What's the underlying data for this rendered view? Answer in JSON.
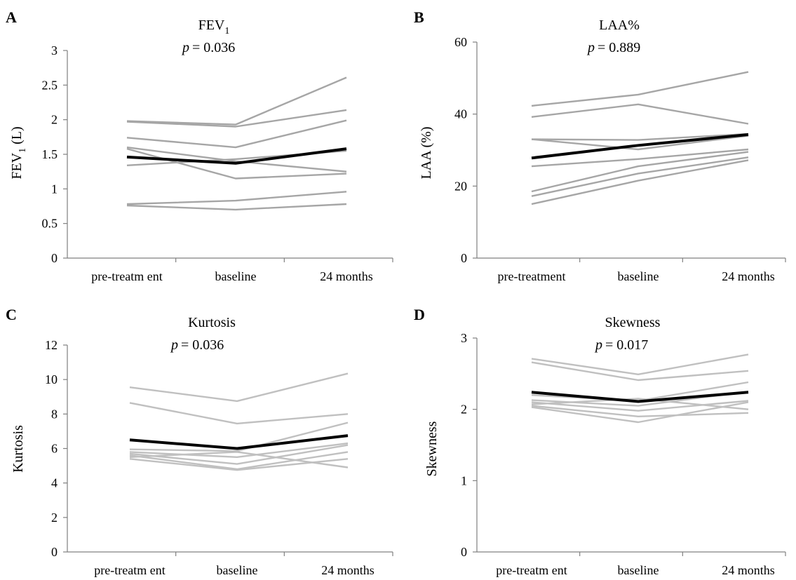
{
  "chart_data": [
    {
      "type": "line",
      "panel": "A",
      "title": "FEV",
      "title_sub": "1",
      "p_label": "p",
      "p_value": "= 0.036",
      "ylabel": "FEV",
      "ylabel_sub": "1",
      "ylabel_suffix": " (L)",
      "categories": [
        "pre-treatm ent",
        "baseline",
        "24 months"
      ],
      "ylim": [
        0,
        3
      ],
      "yticks": [
        "0",
        "0.5",
        "1",
        "1.5",
        "2",
        "2.5",
        "3"
      ],
      "series": [
        {
          "values": [
            1.98,
            1.93,
            2.61
          ],
          "color": "#a6a6a6"
        },
        {
          "values": [
            1.97,
            1.9,
            2.14
          ],
          "color": "#a6a6a6"
        },
        {
          "values": [
            1.74,
            1.6,
            1.99
          ],
          "color": "#a6a6a6"
        },
        {
          "values": [
            1.6,
            1.4,
            1.25
          ],
          "color": "#a6a6a6"
        },
        {
          "values": [
            1.58,
            1.15,
            1.22
          ],
          "color": "#a6a6a6"
        },
        {
          "values": [
            1.34,
            1.43,
            1.55
          ],
          "color": "#a6a6a6"
        },
        {
          "values": [
            0.78,
            0.83,
            0.96
          ],
          "color": "#a6a6a6"
        },
        {
          "values": [
            0.76,
            0.7,
            0.78
          ],
          "color": "#a6a6a6"
        },
        {
          "values": [
            1.46,
            1.37,
            1.58
          ],
          "color": "#000000",
          "mean": true
        }
      ]
    },
    {
      "type": "line",
      "panel": "B",
      "title": "LAA%",
      "title_sub": "",
      "p_label": "p",
      "p_value": "= 0.889",
      "ylabel": "LAA (%)",
      "ylabel_sub": "",
      "ylabel_suffix": "",
      "categories": [
        "pre-treatment",
        "baseline",
        "24 months"
      ],
      "ylim": [
        0,
        60
      ],
      "yticks": [
        "0",
        "20",
        "40",
        "60"
      ],
      "series": [
        {
          "values": [
            42.3,
            45.4,
            51.7
          ],
          "color": "#a6a6a6"
        },
        {
          "values": [
            39.2,
            42.7,
            37.3
          ],
          "color": "#a6a6a6"
        },
        {
          "values": [
            33.0,
            32.8,
            34.5
          ],
          "color": "#a6a6a6"
        },
        {
          "values": [
            33.0,
            30.2,
            34.0
          ],
          "color": "#a6a6a6"
        },
        {
          "values": [
            25.5,
            27.5,
            30.2
          ],
          "color": "#a6a6a6"
        },
        {
          "values": [
            18.5,
            25.5,
            29.5
          ],
          "color": "#a6a6a6"
        },
        {
          "values": [
            17.2,
            23.5,
            28.0
          ],
          "color": "#a6a6a6"
        },
        {
          "values": [
            15.0,
            21.5,
            27.2
          ],
          "color": "#a6a6a6"
        },
        {
          "values": [
            27.8,
            31.3,
            34.3
          ],
          "color": "#000000",
          "mean": true
        }
      ]
    },
    {
      "type": "line",
      "panel": "C",
      "title": "Kurtosis",
      "title_sub": "",
      "p_label": "p",
      "p_value": "= 0.036",
      "ylabel": "Kurtosis",
      "ylabel_sub": "",
      "ylabel_suffix": "",
      "categories": [
        "pre-treatm ent",
        "baseline",
        "24 months"
      ],
      "ylim": [
        0,
        12
      ],
      "yticks": [
        "0",
        "2",
        "4",
        "6",
        "8",
        "10",
        "12"
      ],
      "series": [
        {
          "values": [
            9.55,
            8.75,
            10.35
          ],
          "color": "#c0c0c0"
        },
        {
          "values": [
            8.65,
            7.45,
            8.0
          ],
          "color": "#c0c0c0"
        },
        {
          "values": [
            5.95,
            5.85,
            7.5
          ],
          "color": "#c0c0c0"
        },
        {
          "values": [
            5.8,
            5.5,
            6.3
          ],
          "color": "#c0c0c0"
        },
        {
          "values": [
            5.7,
            5.1,
            6.2
          ],
          "color": "#c0c0c0"
        },
        {
          "values": [
            5.6,
            4.8,
            5.8
          ],
          "color": "#c0c0c0"
        },
        {
          "values": [
            5.4,
            4.75,
            5.4
          ],
          "color": "#c0c0c0"
        },
        {
          "values": [
            5.5,
            5.8,
            4.9
          ],
          "color": "#c0c0c0"
        },
        {
          "values": [
            6.5,
            6.0,
            6.75
          ],
          "color": "#000000",
          "mean": true
        }
      ]
    },
    {
      "type": "line",
      "panel": "D",
      "title": "Skewness",
      "title_sub": "",
      "p_label": "p",
      "p_value": "= 0.017",
      "ylabel": "Skewness",
      "ylabel_sub": "",
      "ylabel_suffix": "",
      "categories": [
        "pre-treatm ent",
        "baseline",
        "24 months"
      ],
      "ylim": [
        0,
        3
      ],
      "yticks": [
        "0",
        "1",
        "2",
        "3"
      ],
      "series": [
        {
          "values": [
            2.71,
            2.49,
            2.77
          ],
          "color": "#c0c0c0"
        },
        {
          "values": [
            2.66,
            2.41,
            2.54
          ],
          "color": "#c0c0c0"
        },
        {
          "values": [
            2.2,
            2.12,
            2.38
          ],
          "color": "#c0c0c0"
        },
        {
          "values": [
            2.13,
            2.05,
            2.25
          ],
          "color": "#c0c0c0"
        },
        {
          "values": [
            2.1,
            1.98,
            2.12
          ],
          "color": "#c0c0c0"
        },
        {
          "values": [
            2.07,
            2.15,
            2.0
          ],
          "color": "#c0c0c0"
        },
        {
          "values": [
            2.05,
            1.9,
            1.95
          ],
          "color": "#c0c0c0"
        },
        {
          "values": [
            2.03,
            1.82,
            2.1
          ],
          "color": "#c0c0c0"
        },
        {
          "values": [
            2.24,
            2.11,
            2.24
          ],
          "color": "#000000",
          "mean": true
        }
      ]
    }
  ]
}
